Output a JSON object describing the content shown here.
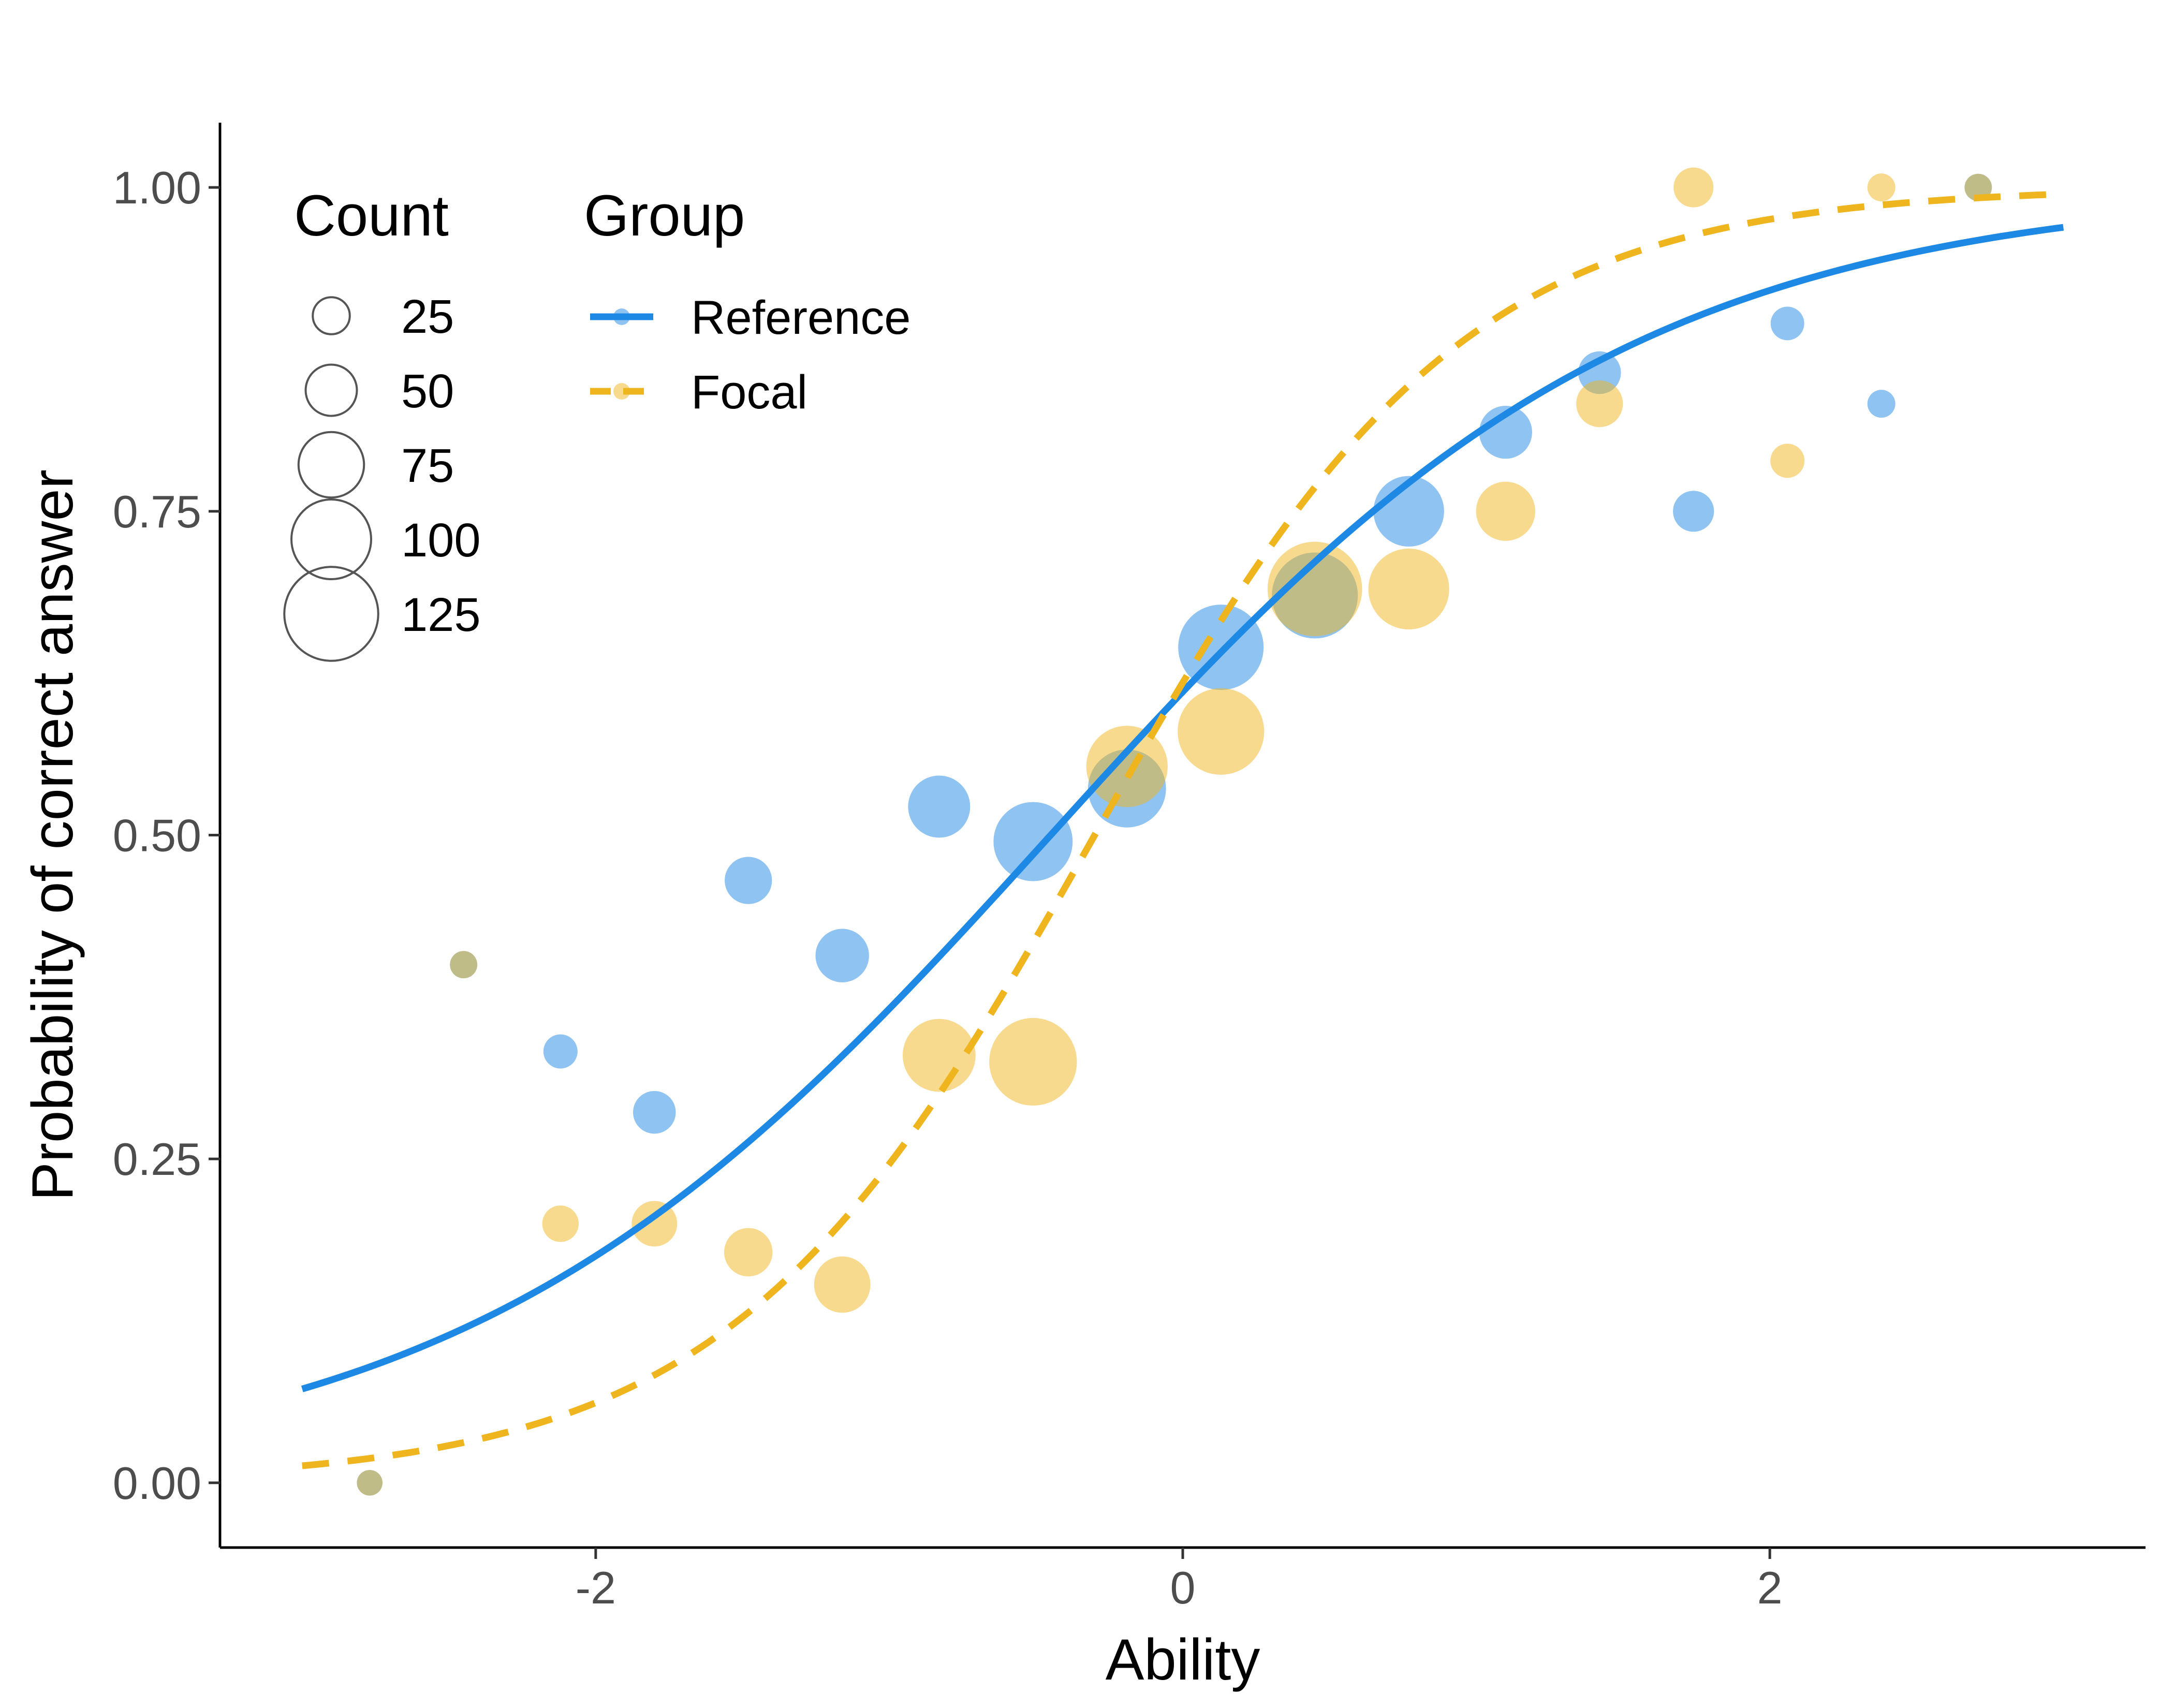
{
  "chart_data": {
    "type": "scatter",
    "title": "",
    "xlabel": "Ability",
    "ylabel": "Probability of correct answer",
    "xlim": [
      -3.28,
      3.28
    ],
    "ylim": [
      -0.05,
      1.05
    ],
    "x_ticks": [
      -2,
      0,
      2
    ],
    "x_tick_labels": [
      "-2",
      "0",
      "2"
    ],
    "y_ticks": [
      0,
      0.25,
      0.5,
      0.75,
      1
    ],
    "y_tick_labels": [
      "0.00",
      "0.25",
      "0.50",
      "0.75",
      "1.00"
    ],
    "grid": false,
    "legend_placement": "top-left inside",
    "size_legend": {
      "title": "Count",
      "entries": [
        {
          "label": "25",
          "value": 25
        },
        {
          "label": "50",
          "value": 50
        },
        {
          "label": "75",
          "value": 75
        },
        {
          "label": "100",
          "value": 100
        },
        {
          "label": "125",
          "value": 125
        }
      ]
    },
    "group_legend": {
      "title": "Group"
    },
    "series": [
      {
        "name": "Reference",
        "color": "#1e88e5",
        "line_style": "solid",
        "curve": {
          "a": 1.0,
          "b": -0.45
        },
        "points": [
          {
            "x": -2.77,
            "y": 0.0,
            "count": 5
          },
          {
            "x": -2.45,
            "y": 0.4,
            "count": 8
          },
          {
            "x": -2.12,
            "y": 0.333,
            "count": 20
          },
          {
            "x": -1.8,
            "y": 0.286,
            "count": 35
          },
          {
            "x": -1.48,
            "y": 0.465,
            "count": 43
          },
          {
            "x": -1.16,
            "y": 0.407,
            "count": 54
          },
          {
            "x": -0.83,
            "y": 0.522,
            "count": 69
          },
          {
            "x": -0.51,
            "y": 0.495,
            "count": 99
          },
          {
            "x": -0.19,
            "y": 0.536,
            "count": 97
          },
          {
            "x": 0.13,
            "y": 0.645,
            "count": 110
          },
          {
            "x": 0.45,
            "y": 0.685,
            "count": 111
          },
          {
            "x": 0.77,
            "y": 0.75,
            "count": 84
          },
          {
            "x": 1.1,
            "y": 0.811,
            "count": 53
          },
          {
            "x": 1.42,
            "y": 0.857,
            "count": 35
          },
          {
            "x": 1.74,
            "y": 0.75,
            "count": 32
          },
          {
            "x": 2.06,
            "y": 0.895,
            "count": 19
          },
          {
            "x": 2.38,
            "y": 0.833,
            "count": 9
          },
          {
            "x": 2.71,
            "y": 1.0,
            "count": 8
          }
        ]
      },
      {
        "name": "Focal",
        "color": "#efb51e",
        "line_style": "dashed",
        "curve": {
          "a": 1.6,
          "b": -0.3
        },
        "points": [
          {
            "x": -2.77,
            "y": 0.0,
            "count": 5
          },
          {
            "x": -2.45,
            "y": 0.4,
            "count": 8
          },
          {
            "x": -2.12,
            "y": 0.2,
            "count": 24
          },
          {
            "x": -1.8,
            "y": 0.2,
            "count": 40
          },
          {
            "x": -1.48,
            "y": 0.178,
            "count": 45
          },
          {
            "x": -1.16,
            "y": 0.153,
            "count": 59
          },
          {
            "x": -0.83,
            "y": 0.33,
            "count": 88
          },
          {
            "x": -0.51,
            "y": 0.325,
            "count": 114
          },
          {
            "x": -0.19,
            "y": 0.553,
            "count": 103
          },
          {
            "x": 0.13,
            "y": 0.58,
            "count": 112
          },
          {
            "x": 0.45,
            "y": 0.69,
            "count": 126
          },
          {
            "x": 0.77,
            "y": 0.69,
            "count": 102
          },
          {
            "x": 1.1,
            "y": 0.75,
            "count": 64
          },
          {
            "x": 1.42,
            "y": 0.833,
            "count": 42
          },
          {
            "x": 1.74,
            "y": 1.0,
            "count": 30
          },
          {
            "x": 2.06,
            "y": 0.789,
            "count": 20
          },
          {
            "x": 2.38,
            "y": 1.0,
            "count": 9
          },
          {
            "x": 2.71,
            "y": 1.0,
            "count": 8
          }
        ]
      }
    ]
  }
}
